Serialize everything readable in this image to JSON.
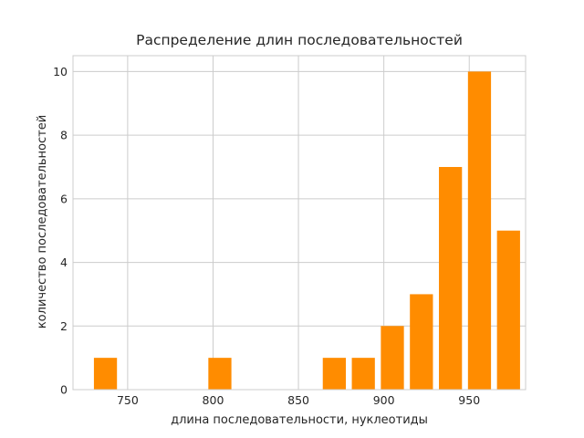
{
  "chart_data": {
    "type": "bar",
    "title": "Распределение длин последовательностей",
    "xlabel": "длина последовательности, нуклеотиды",
    "ylabel": "количество последовательностей",
    "xlim": [
      718,
      983
    ],
    "ylim": [
      0,
      10.5
    ],
    "xticks": [
      750,
      800,
      850,
      900,
      950
    ],
    "yticks": [
      0,
      2,
      4,
      6,
      8,
      10
    ],
    "bar_width": 13.5,
    "bar_color": "#ff8c00",
    "grid": true,
    "x": [
      737,
      804,
      871,
      888,
      905,
      922,
      939,
      956,
      973
    ],
    "values": [
      1,
      1,
      1,
      1,
      2,
      3,
      7,
      10,
      5
    ]
  }
}
